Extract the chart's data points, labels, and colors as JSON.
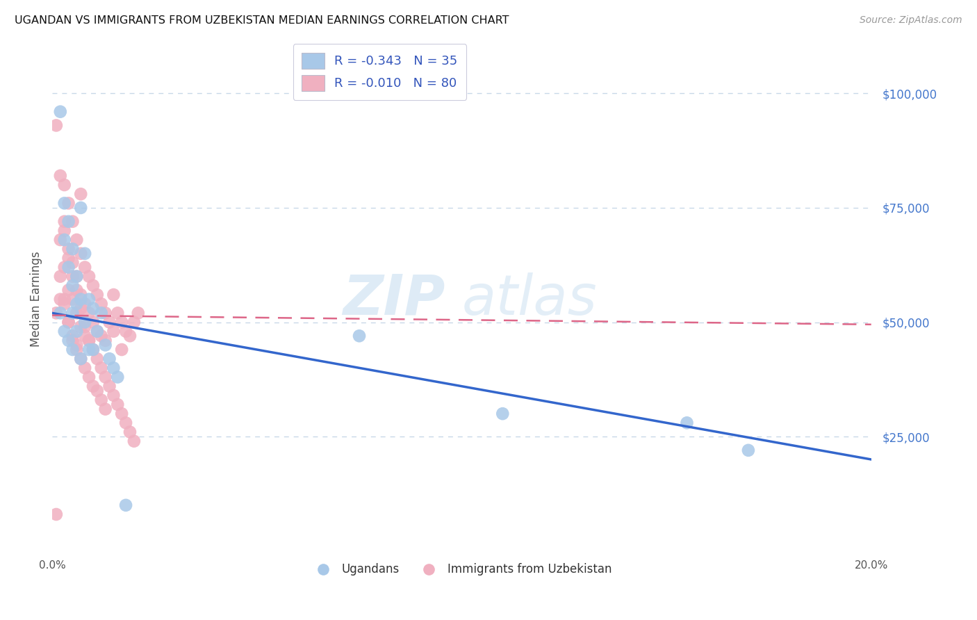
{
  "title": "UGANDAN VS IMMIGRANTS FROM UZBEKISTAN MEDIAN EARNINGS CORRELATION CHART",
  "source": "Source: ZipAtlas.com",
  "ylabel": "Median Earnings",
  "xmin": 0.0,
  "xmax": 0.2,
  "ymin": 0,
  "ymax": 110000,
  "watermark_part1": "ZIP",
  "watermark_part2": "atlas",
  "legend_blue_label": "R = -0.343   N = 35",
  "legend_pink_label": "R = -0.010   N = 80",
  "blue_color": "#a8c8e8",
  "pink_color": "#f0b0c0",
  "blue_line_color": "#3366cc",
  "pink_line_color": "#dd6688",
  "grid_color": "#c8d8e8",
  "blue_scatter_x": [
    0.002,
    0.003,
    0.003,
    0.004,
    0.004,
    0.005,
    0.005,
    0.005,
    0.006,
    0.006,
    0.007,
    0.007,
    0.008,
    0.008,
    0.009,
    0.009,
    0.01,
    0.01,
    0.011,
    0.012,
    0.013,
    0.014,
    0.015,
    0.016,
    0.002,
    0.003,
    0.004,
    0.005,
    0.006,
    0.007,
    0.075,
    0.11,
    0.155,
    0.17,
    0.018
  ],
  "blue_scatter_y": [
    96000,
    76000,
    68000,
    72000,
    62000,
    66000,
    58000,
    52000,
    60000,
    54000,
    75000,
    55000,
    65000,
    50000,
    55000,
    44000,
    53000,
    44000,
    48000,
    52000,
    45000,
    42000,
    40000,
    38000,
    52000,
    48000,
    46000,
    44000,
    48000,
    42000,
    47000,
    30000,
    28000,
    22000,
    10000
  ],
  "pink_scatter_x": [
    0.001,
    0.001,
    0.002,
    0.002,
    0.002,
    0.003,
    0.003,
    0.003,
    0.003,
    0.004,
    0.004,
    0.004,
    0.004,
    0.005,
    0.005,
    0.005,
    0.005,
    0.006,
    0.006,
    0.006,
    0.006,
    0.007,
    0.007,
    0.007,
    0.008,
    0.008,
    0.008,
    0.009,
    0.009,
    0.009,
    0.01,
    0.01,
    0.011,
    0.011,
    0.012,
    0.012,
    0.013,
    0.013,
    0.014,
    0.015,
    0.015,
    0.016,
    0.017,
    0.017,
    0.018,
    0.019,
    0.02,
    0.021,
    0.002,
    0.003,
    0.004,
    0.005,
    0.006,
    0.007,
    0.008,
    0.009,
    0.01,
    0.011,
    0.012,
    0.013,
    0.003,
    0.004,
    0.005,
    0.006,
    0.007,
    0.008,
    0.009,
    0.01,
    0.011,
    0.012,
    0.013,
    0.014,
    0.015,
    0.016,
    0.017,
    0.018,
    0.019,
    0.02,
    0.001,
    0.007
  ],
  "pink_scatter_y": [
    93000,
    52000,
    82000,
    68000,
    55000,
    80000,
    72000,
    62000,
    54000,
    76000,
    66000,
    57000,
    50000,
    72000,
    63000,
    55000,
    47000,
    68000,
    60000,
    52000,
    45000,
    65000,
    56000,
    49000,
    62000,
    54000,
    47000,
    60000,
    52000,
    46000,
    58000,
    50000,
    56000,
    48000,
    54000,
    47000,
    52000,
    46000,
    50000,
    56000,
    48000,
    52000,
    50000,
    44000,
    48000,
    47000,
    50000,
    52000,
    60000,
    55000,
    50000,
    46000,
    44000,
    42000,
    40000,
    38000,
    36000,
    35000,
    33000,
    31000,
    70000,
    64000,
    60000,
    57000,
    53000,
    49000,
    46000,
    44000,
    42000,
    40000,
    38000,
    36000,
    34000,
    32000,
    30000,
    28000,
    26000,
    24000,
    8000,
    78000
  ],
  "blue_trend_x": [
    0.0,
    0.2
  ],
  "blue_trend_y": [
    52000,
    20000
  ],
  "pink_trend_x": [
    0.0,
    0.2
  ],
  "pink_trend_y": [
    51500,
    49500
  ],
  "ytick_positions": [
    25000,
    50000,
    75000,
    100000
  ],
  "ytick_labels": [
    "$25,000",
    "$50,000",
    "$75,000",
    "$100,000"
  ],
  "bottom_labels": [
    "Ugandans",
    "Immigrants from Uzbekistan"
  ]
}
